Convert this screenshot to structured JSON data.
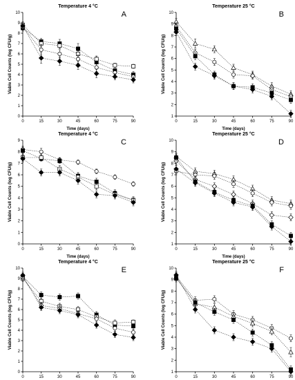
{
  "chart_data": [
    {
      "type": "line",
      "panel": "A",
      "title": "Temperature 4 °C",
      "xlabel": "Time (days)",
      "ylabel": "Viable Cell Counts (log CFU/g)",
      "x": [
        0,
        15,
        30,
        45,
        60,
        75,
        90
      ],
      "xlim": [
        0,
        90
      ],
      "ylim": [
        0,
        10
      ],
      "series": [
        {
          "marker": "filled-square",
          "values": [
            8.5,
            7.2,
            7.0,
            6.5,
            5.2,
            4.4,
            4.0
          ],
          "errors": [
            0.3,
            0.3,
            0.4,
            0.5,
            0.5,
            0.4,
            0.3
          ]
        },
        {
          "marker": "open-square",
          "values": [
            8.8,
            7.0,
            6.8,
            6.0,
            5.5,
            4.9,
            4.8
          ],
          "errors": [
            0.3,
            0.3,
            0.3,
            0.3,
            0.3,
            0.2,
            0.2
          ]
        },
        {
          "marker": "open-circle",
          "values": [
            8.6,
            6.4,
            6.0,
            5.5,
            4.7,
            4.2,
            3.8
          ],
          "errors": [
            0.3,
            0.5,
            0.4,
            0.4,
            0.4,
            0.3,
            0.3
          ]
        },
        {
          "marker": "filled-diamond",
          "values": [
            8.7,
            5.6,
            5.3,
            4.9,
            4.1,
            3.8,
            3.5
          ],
          "errors": [
            0.3,
            0.5,
            0.4,
            0.4,
            0.4,
            0.3,
            0.3
          ]
        }
      ]
    },
    {
      "type": "line",
      "panel": "B",
      "title": "Temperature 25 °C",
      "xlabel": "Time (days)",
      "ylabel": "Viable Cell Counts (log CFU/g)",
      "x": [
        0,
        15,
        30,
        45,
        60,
        75,
        90
      ],
      "xlim": [
        0,
        90
      ],
      "ylim": [
        1,
        10
      ],
      "series": [
        {
          "marker": "open-triangle",
          "values": [
            9.2,
            7.3,
            6.8,
            5.2,
            4.6,
            3.6,
            2.9
          ],
          "errors": [
            0.3,
            0.4,
            0.3,
            0.3,
            0.3,
            0.3,
            0.3
          ]
        },
        {
          "marker": "open-circle",
          "values": [
            8.8,
            6.5,
            5.7,
            4.6,
            4.5,
            3.3,
            2.7
          ],
          "errors": [
            0.3,
            0.3,
            0.3,
            0.3,
            0.3,
            0.3,
            0.3
          ]
        },
        {
          "marker": "filled-square",
          "values": [
            8.6,
            6.2,
            4.6,
            3.6,
            3.5,
            3.0,
            2.4
          ],
          "errors": [
            0.3,
            0.3,
            0.3,
            0.3,
            0.3,
            0.3,
            0.3
          ]
        },
        {
          "marker": "filled-diamond",
          "values": [
            8.3,
            5.3,
            4.5,
            3.6,
            3.3,
            2.7,
            1.2
          ],
          "errors": [
            0.3,
            0.3,
            0.3,
            0.3,
            0.3,
            0.3,
            0.3
          ]
        }
      ]
    },
    {
      "type": "line",
      "panel": "C",
      "title": "Temperature 4 °C",
      "xlabel": "Time (days)",
      "ylabel": "Viable Cell Counts (log CFU/g)",
      "x": [
        0,
        15,
        30,
        45,
        60,
        75,
        90
      ],
      "xlim": [
        0,
        90
      ],
      "ylim": [
        0,
        9
      ],
      "series": [
        {
          "marker": "open-circle",
          "values": [
            8.2,
            8.0,
            7.3,
            7.1,
            6.3,
            5.8,
            5.2
          ],
          "errors": [
            0.3,
            0.3,
            0.2,
            0.2,
            0.2,
            0.2,
            0.2
          ]
        },
        {
          "marker": "filled-square",
          "values": [
            8.1,
            7.4,
            7.2,
            5.9,
            5.4,
            4.4,
            3.8
          ],
          "errors": [
            0.3,
            0.2,
            0.2,
            0.3,
            0.3,
            0.3,
            0.2
          ]
        },
        {
          "marker": "open-square",
          "values": [
            7.5,
            7.5,
            6.5,
            5.8,
            5.0,
            4.3,
            3.8
          ],
          "errors": [
            0.3,
            0.3,
            0.3,
            0.3,
            0.3,
            0.3,
            0.3
          ]
        },
        {
          "marker": "filled-diamond",
          "values": [
            7.4,
            6.2,
            6.2,
            5.5,
            4.3,
            4.2,
            3.6
          ],
          "errors": [
            0.3,
            0.3,
            0.3,
            0.3,
            0.3,
            0.3,
            0.3
          ]
        }
      ]
    },
    {
      "type": "line",
      "panel": "D",
      "title": "Temperature 25 °C",
      "xlabel": "Time (days)",
      "ylabel": "Viable Cell Counts (log CFU/g)",
      "x": [
        0,
        15,
        30,
        45,
        60,
        75,
        90
      ],
      "xlim": [
        0,
        90
      ],
      "ylim": [
        1,
        10
      ],
      "series": [
        {
          "marker": "open-triangle",
          "values": [
            8.6,
            7.3,
            7.1,
            6.6,
            5.8,
            4.8,
            4.5
          ],
          "errors": [
            0.3,
            0.3,
            0.3,
            0.3,
            0.3,
            0.3,
            0.3
          ]
        },
        {
          "marker": "open-circle",
          "values": [
            7.3,
            7.0,
            6.9,
            6.2,
            5.4,
            4.6,
            4.3
          ],
          "errors": [
            0.3,
            0.3,
            0.3,
            0.3,
            0.3,
            0.3,
            0.3
          ]
        },
        {
          "marker": "open-diamond",
          "values": [
            8.2,
            6.6,
            6.0,
            5.3,
            4.5,
            3.5,
            3.3
          ],
          "errors": [
            0.3,
            0.3,
            0.3,
            0.3,
            0.3,
            0.3,
            0.3
          ]
        },
        {
          "marker": "filled-square",
          "values": [
            8.5,
            6.4,
            5.5,
            4.8,
            4.3,
            2.7,
            1.7
          ],
          "errors": [
            0.3,
            0.3,
            0.3,
            0.3,
            0.3,
            0.3,
            0.3
          ]
        },
        {
          "marker": "filled-diamond",
          "values": [
            7.5,
            6.3,
            5.4,
            4.6,
            4.2,
            2.5,
            1.2
          ],
          "errors": [
            0.3,
            0.3,
            0.3,
            0.3,
            0.3,
            0.3,
            0.3
          ]
        }
      ]
    },
    {
      "type": "line",
      "panel": "E",
      "title": "Temperature 4 °C",
      "xlabel": "Time (days)",
      "ylabel": "Viable Cell Counts (log CFU/g)",
      "x": [
        0,
        15,
        30,
        45,
        60,
        75,
        90
      ],
      "xlim": [
        0,
        90
      ],
      "ylim": [
        0,
        10
      ],
      "series": [
        {
          "marker": "filled-square",
          "values": [
            9.2,
            7.4,
            7.2,
            7.3,
            5.5,
            4.5,
            4.4
          ],
          "errors": [
            0.3,
            0.3,
            0.3,
            0.3,
            0.3,
            0.3,
            0.3
          ]
        },
        {
          "marker": "open-square",
          "values": [
            9.0,
            6.8,
            6.3,
            6.0,
            5.3,
            4.7,
            4.8
          ],
          "errors": [
            0.3,
            0.3,
            0.3,
            0.3,
            0.3,
            0.3,
            0.2
          ]
        },
        {
          "marker": "open-circle",
          "values": [
            9.1,
            6.4,
            6.1,
            5.6,
            5.1,
            4.2,
            3.8
          ],
          "errors": [
            0.3,
            0.3,
            0.3,
            0.3,
            0.3,
            0.3,
            0.3
          ]
        },
        {
          "marker": "filled-diamond",
          "values": [
            9.3,
            6.2,
            5.9,
            5.5,
            4.5,
            3.6,
            3.3
          ],
          "errors": [
            0.3,
            0.3,
            0.3,
            0.3,
            0.3,
            0.3,
            0.3
          ]
        }
      ]
    },
    {
      "type": "line",
      "panel": "F",
      "title": "Temperature 25 °C",
      "xlabel": "Time (days)",
      "ylabel": "Viable Cell Counts (log CFU/g)",
      "x": [
        0,
        15,
        30,
        45,
        60,
        75,
        90
      ],
      "xlim": [
        0,
        90
      ],
      "ylim": [
        1,
        10
      ],
      "series": [
        {
          "marker": "open-circle",
          "values": [
            9.3,
            7.2,
            7.3,
            6.0,
            5.5,
            4.8,
            3.9
          ],
          "errors": [
            0.3,
            0.3,
            0.3,
            0.3,
            0.3,
            0.3,
            0.3
          ]
        },
        {
          "marker": "open-triangle",
          "values": [
            9.2,
            6.9,
            6.6,
            5.8,
            5.2,
            4.5,
            2.7
          ],
          "errors": [
            0.3,
            0.3,
            0.3,
            0.3,
            0.3,
            0.3,
            0.4
          ]
        },
        {
          "marker": "filled-square",
          "values": [
            9.1,
            7.0,
            6.2,
            5.5,
            4.4,
            3.3,
            1.2
          ],
          "errors": [
            0.3,
            0.3,
            0.3,
            0.3,
            0.3,
            0.3,
            0.3
          ]
        },
        {
          "marker": "filled-diamond",
          "values": [
            9.4,
            6.4,
            4.6,
            4.0,
            3.6,
            3.0,
            1.0
          ],
          "errors": [
            0.3,
            0.3,
            0.3,
            0.3,
            0.3,
            0.3,
            0.3
          ]
        }
      ]
    }
  ]
}
